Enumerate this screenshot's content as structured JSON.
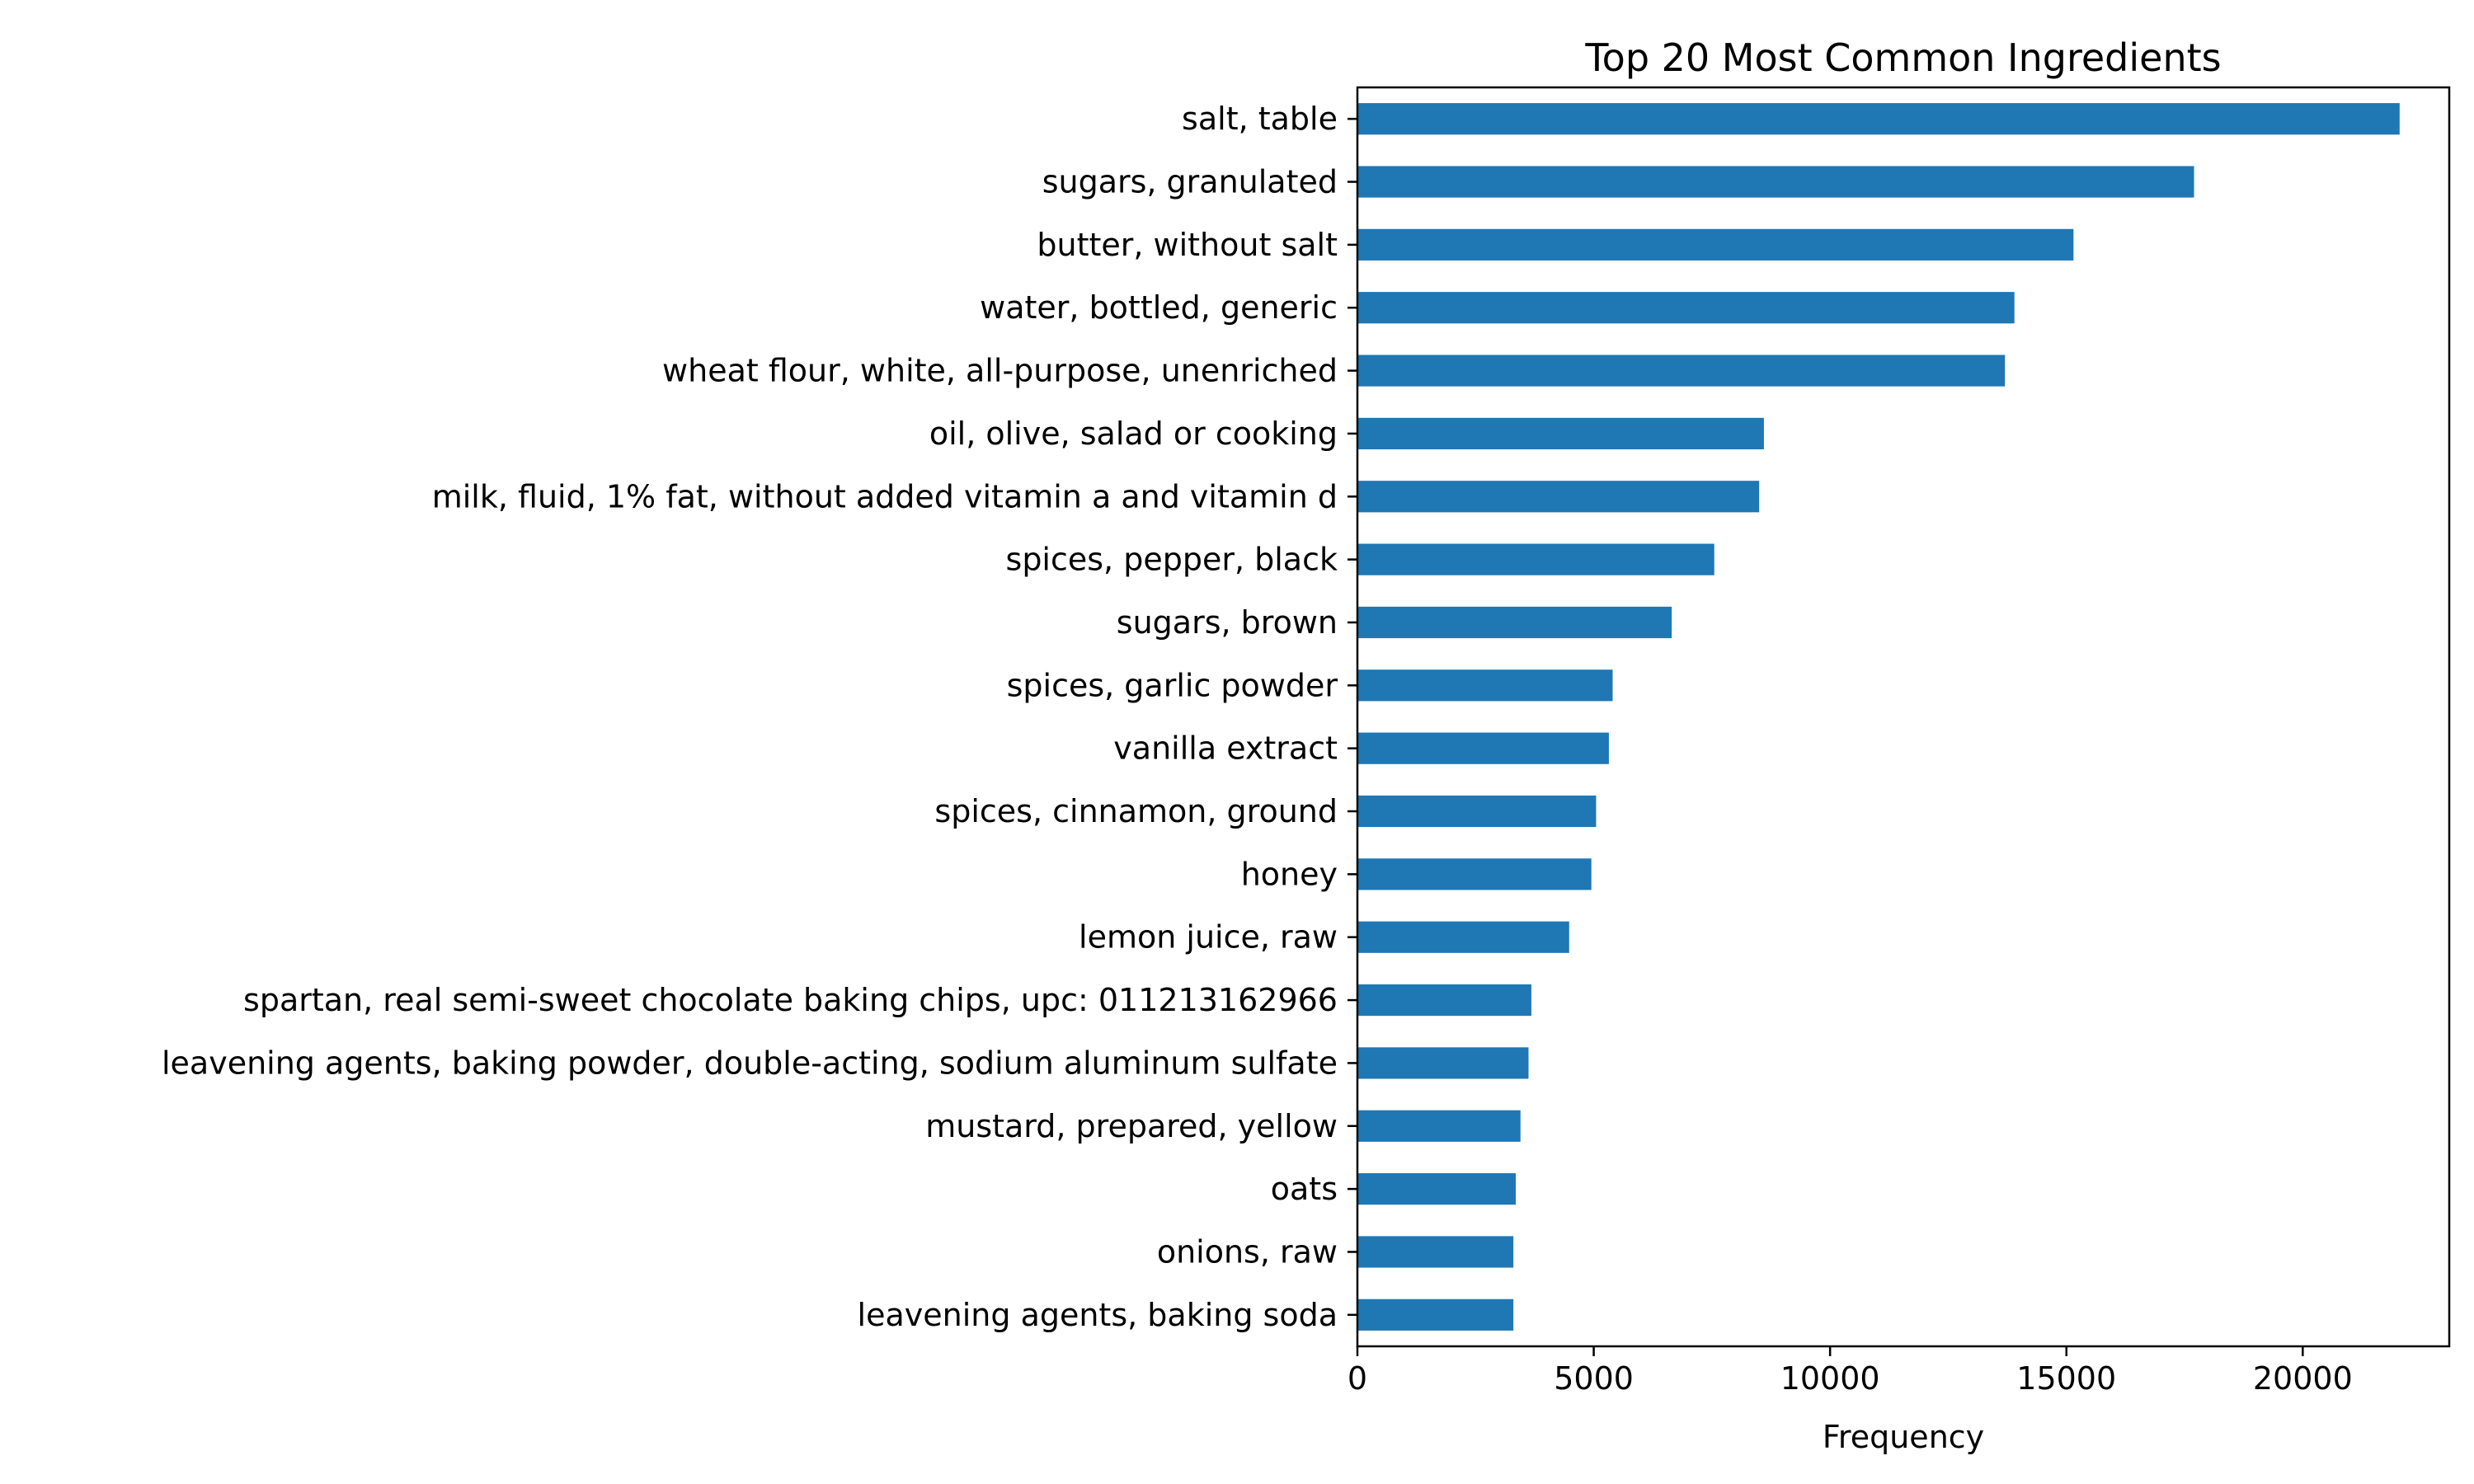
{
  "chart_data": {
    "type": "bar",
    "orientation": "horizontal",
    "title": "Top 20 Most Common Ingredients",
    "xlabel": "Frequency",
    "ylabel": "",
    "categories": [
      "salt, table",
      "sugars, granulated",
      "butter, without salt",
      "water, bottled, generic",
      "wheat flour, white, all-purpose, unenriched",
      "oil, olive, salad or cooking",
      "milk, fluid, 1% fat, without added vitamin a and vitamin d",
      "spices, pepper, black",
      "sugars, brown",
      "spices, garlic powder",
      "vanilla extract",
      "spices, cinnamon, ground",
      "honey",
      "lemon juice, raw",
      "spartan, real semi-sweet chocolate baking chips, upc: 011213162966",
      "leavening agents, baking powder, double-acting, sodium aluminum sulfate",
      "mustard, prepared, yellow",
      "oats",
      "onions, raw",
      "leavening agents, baking soda"
    ],
    "values": [
      22050,
      17700,
      15150,
      13900,
      13700,
      8600,
      8500,
      7550,
      6650,
      5400,
      5320,
      5050,
      4950,
      4480,
      3680,
      3620,
      3450,
      3350,
      3300,
      3300
    ],
    "xlim": [
      0,
      23100
    ],
    "xticks": [
      0,
      5000,
      10000,
      15000,
      20000
    ],
    "xtick_labels": [
      "0",
      "5000",
      "10000",
      "15000",
      "20000"
    ],
    "grid": false,
    "bar_color": "#1f77b4"
  }
}
